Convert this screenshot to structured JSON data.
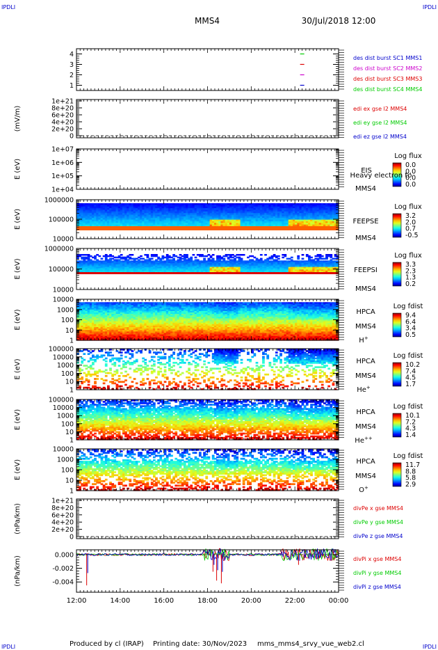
{
  "header": {
    "corner_tl": "IPDLI",
    "corner_tr": "IPDLI",
    "corner_bl": "IPDLI",
    "corner_br": "IPDLI",
    "title": "MMS4",
    "datetime": "30/Jul/2018 12:00"
  },
  "footer": {
    "produced_by": "Produced by cl (IRAP)",
    "printing_date": "Printing date: 30/Nov/2023",
    "script": "mms_mms4_srvy_vue_web2.cl"
  },
  "colors": {
    "mms1": "#0000cc",
    "mms2": "#cc00cc",
    "mms3": "#dd0000",
    "mms4": "#00cc00",
    "x": "#dd0000",
    "y": "#00cc00",
    "z": "#0000cc"
  },
  "chart_data": [
    {
      "id": "p1",
      "type": "scatter",
      "yticks": [
        "4",
        "3",
        "2",
        "1"
      ],
      "ylim": [
        0.5,
        4.5
      ],
      "legend": [
        {
          "text": "des dist burst SC1 MMS1",
          "color": "#0000cc"
        },
        {
          "text": "des dist burst SC2 MMS2",
          "color": "#cc00cc"
        },
        {
          "text": "des dist burst SC3 MMS3",
          "color": "#dd0000"
        },
        {
          "text": "des dist burst SC4 MMS4",
          "color": "#00cc00"
        }
      ],
      "series": [
        {
          "x": [
            "22:20"
          ],
          "y": [
            4
          ],
          "color": "#00cc00"
        },
        {
          "x": [
            "22:20"
          ],
          "y": [
            3
          ],
          "color": "#dd0000"
        },
        {
          "x": [
            "22:20"
          ],
          "y": [
            2
          ],
          "color": "#cc00cc"
        },
        {
          "x": [
            "22:20"
          ],
          "y": [
            1
          ],
          "color": "#0000cc"
        }
      ]
    },
    {
      "id": "p2",
      "type": "line",
      "ylabel": "(mV/m)",
      "yticks": [
        "1e+21",
        "8e+20",
        "6e+20",
        "4e+20",
        "2e+20",
        "0"
      ],
      "ylim": [
        0,
        1e+21
      ],
      "legend": [
        {
          "text": "edi ex gse l2 MMS4",
          "color": "#dd0000"
        },
        {
          "text": "edi ey gse l2 MMS4",
          "color": "#00cc00"
        },
        {
          "text": "edi ez gse l2 MMS4",
          "color": "#0000cc"
        }
      ]
    },
    {
      "id": "p3",
      "type": "heatmap",
      "ylabel": "E (eV)",
      "log": true,
      "yticks": [
        "1e+07",
        "1e+06",
        "1e+05",
        "1e+04"
      ],
      "inst": "EIS",
      "overlay": "Heavy electron to",
      "sc": "MMS4",
      "cb_title": "Log flux",
      "cb_ticks": [
        "0.0",
        "0.0",
        "0.0",
        "0.0"
      ]
    },
    {
      "id": "p4",
      "type": "heatmap",
      "ylabel": "E (eV)",
      "log": true,
      "yticks": [
        "1000000",
        "100000",
        "10000"
      ],
      "inst": "FEEPSE",
      "sc": "MMS4",
      "cb_title": "Log flux",
      "cb_ticks": [
        "3.2",
        "2.0",
        "0.7",
        "-0.5"
      ]
    },
    {
      "id": "p5",
      "type": "heatmap",
      "ylabel": "E (eV)",
      "log": true,
      "yticks": [
        "1000000",
        "100000",
        "10000"
      ],
      "inst": "FEEPSI",
      "sc": "MMS4",
      "cb_title": "Log flux",
      "cb_ticks": [
        "3.3",
        "2.3",
        "1.3",
        "0.2"
      ]
    },
    {
      "id": "p6",
      "type": "heatmap",
      "ylabel": "E (eV)",
      "log": true,
      "yticks": [
        "10000",
        "1000",
        "100",
        "10",
        "1"
      ],
      "inst": "HPCA",
      "sc": "MMS4",
      "species": "H",
      "species_sup": "+",
      "cb_title": "Log fdist",
      "cb_ticks": [
        "9.4",
        "6.4",
        "3.4",
        "0.5"
      ]
    },
    {
      "id": "p7",
      "type": "heatmap",
      "ylabel": "E (eV)",
      "log": true,
      "yticks": [
        "100000",
        "10000",
        "1000",
        "100",
        "10",
        "1"
      ],
      "inst": "HPCA",
      "sc": "MMS4",
      "species": "He",
      "species_sup": "+",
      "cb_title": "Log fdist",
      "cb_ticks": [
        "10.2",
        "7.4",
        "4.5",
        "1.7"
      ]
    },
    {
      "id": "p8",
      "type": "heatmap",
      "ylabel": "E (eV)",
      "log": true,
      "yticks": [
        "100000",
        "10000",
        "1000",
        "100",
        "10",
        "1"
      ],
      "inst": "HPCA",
      "sc": "MMS4",
      "species": "He",
      "species_sup": "++",
      "cb_title": "Log fdist",
      "cb_ticks": [
        "10.1",
        "7.2",
        "4.3",
        "1.4"
      ]
    },
    {
      "id": "p9",
      "type": "heatmap",
      "ylabel": "E (eV)",
      "log": true,
      "yticks": [
        "10000",
        "1000",
        "100",
        "10",
        "1"
      ],
      "inst": "HPCA",
      "sc": "MMS4",
      "species": "O",
      "species_sup": "+",
      "cb_title": "Log fdist",
      "cb_ticks": [
        "11.7",
        "8.8",
        "5.8",
        "2.9"
      ]
    },
    {
      "id": "p10",
      "type": "line",
      "ylabel": "(nPa/km)",
      "yticks": [
        "1e+21",
        "8e+20",
        "6e+20",
        "4e+20",
        "2e+20",
        "0"
      ],
      "ylim": [
        0,
        1e+21
      ],
      "legend": [
        {
          "text": "divPe x gse MMS4",
          "color": "#dd0000"
        },
        {
          "text": "divPe y gse MMS4",
          "color": "#00cc00"
        },
        {
          "text": "divPe z gse MMS4",
          "color": "#0000cc"
        }
      ]
    },
    {
      "id": "p11",
      "type": "line",
      "ylabel": "(nPa/km)",
      "yticks": [
        "0.000",
        "-0.002",
        "-0.004"
      ],
      "ylim": [
        -0.0055,
        0.0007
      ],
      "legend": [
        {
          "text": "divPi x gse MMS4",
          "color": "#dd0000"
        },
        {
          "text": "divPi y gse MMS4",
          "color": "#00cc00"
        },
        {
          "text": "divPi z gse MMS4",
          "color": "#0000cc"
        }
      ],
      "spikes": [
        {
          "t": "12:28",
          "v": -0.0045
        },
        {
          "t": "18:15",
          "v": -0.0025
        },
        {
          "t": "18:25",
          "v": -0.0038
        },
        {
          "t": "18:38",
          "v": -0.0042
        },
        {
          "t": "22:10",
          "v": -0.0015
        },
        {
          "t": "22:25",
          "v": -0.0008
        }
      ]
    }
  ],
  "xaxis": {
    "ticks": [
      "12:00",
      "14:00",
      "16:00",
      "18:00",
      "20:00",
      "22:00",
      "00:00"
    ],
    "range": [
      "12:00",
      "00:00"
    ]
  }
}
